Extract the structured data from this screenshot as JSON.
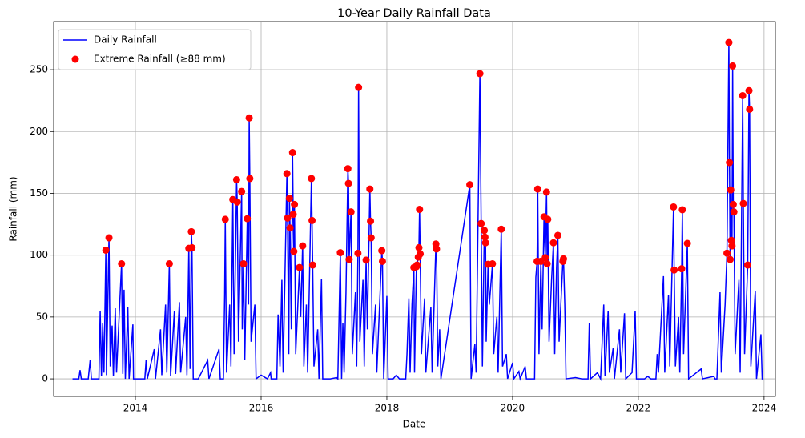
{
  "chart_data": {
    "type": "line",
    "title": "10-Year Daily Rainfall Data",
    "x_label": "Date",
    "y_label": "Rainfall (mm)",
    "xlim": [
      2012.7,
      2024.18
    ],
    "ylim": [
      -14.2,
      288.9
    ],
    "xticks": [
      2014,
      2016,
      2018,
      2020,
      2022,
      2024
    ],
    "yticks": [
      0,
      50,
      100,
      150,
      200,
      250
    ],
    "grid": true,
    "legend": "upper left",
    "series": [
      {
        "name": "Daily Rainfall",
        "type": "line",
        "color": "#0000ff",
        "x": [
          2013.0,
          2013.1,
          2013.12,
          2013.14,
          2013.25,
          2013.28,
          2013.3,
          2013.42,
          2013.44,
          2013.46,
          2013.48,
          2013.5,
          2013.53,
          2013.54,
          2013.58,
          2013.6,
          2013.63,
          2013.65,
          2013.68,
          2013.7,
          2013.78,
          2013.8,
          2013.82,
          2013.84,
          2013.88,
          2013.9,
          2013.96,
          2013.97,
          2014.15,
          2014.17,
          2014.19,
          2014.3,
          2014.32,
          2014.4,
          2014.42,
          2014.48,
          2014.5,
          2014.54,
          2014.56,
          2014.62,
          2014.64,
          2014.7,
          2014.72,
          2014.8,
          2014.82,
          2014.85,
          2014.87,
          2014.89,
          2014.9,
          2014.92,
          2015.0,
          2015.15,
          2015.17,
          2015.33,
          2015.35,
          2015.4,
          2015.42,
          2015.43,
          2015.45,
          2015.5,
          2015.52,
          2015.55,
          2015.57,
          2015.61,
          2015.62,
          2015.64,
          2015.69,
          2015.7,
          2015.72,
          2015.74,
          2015.78,
          2015.8,
          2015.81,
          2015.82,
          2015.84,
          2015.9,
          2015.92,
          2016.0,
          2016.1,
          2016.15,
          2016.16,
          2016.25,
          2016.27,
          2016.3,
          2016.33,
          2016.35,
          2016.41,
          2016.42,
          2016.44,
          2016.45,
          2016.46,
          2016.48,
          2016.5,
          2016.51,
          2016.52,
          2016.53,
          2016.55,
          2016.61,
          2016.63,
          2016.66,
          2016.68,
          2016.72,
          2016.74,
          2016.8,
          2016.81,
          2016.82,
          2016.84,
          2016.9,
          2016.92,
          2016.96,
          2016.98,
          2017.1,
          2017.2,
          2017.22,
          2017.26,
          2017.28,
          2017.3,
          2017.32,
          2017.35,
          2017.38,
          2017.39,
          2017.4,
          2017.43,
          2017.45,
          2017.5,
          2017.52,
          2017.54,
          2017.55,
          2017.57,
          2017.62,
          2017.64,
          2017.67,
          2017.69,
          2017.73,
          2017.74,
          2017.75,
          2017.77,
          2017.82,
          2017.84,
          2017.92,
          2017.93,
          2017.95,
          2018.0,
          2018.02,
          2018.1,
          2018.15,
          2018.2,
          2018.3,
          2018.32,
          2018.35,
          2018.37,
          2018.4,
          2018.43,
          2018.44,
          2018.47,
          2018.48,
          2018.5,
          2018.51,
          2018.52,
          2018.53,
          2018.55,
          2018.6,
          2018.62,
          2018.7,
          2018.72,
          2018.78,
          2018.79,
          2018.81,
          2018.84,
          2018.86,
          2019.32,
          2019.34,
          2019.4,
          2019.42,
          2019.48,
          2019.5,
          2019.52,
          2019.55,
          2019.56,
          2019.57,
          2019.58,
          2019.61,
          2019.63,
          2019.68,
          2019.7,
          2019.75,
          2019.77,
          2019.82,
          2019.84,
          2019.9,
          2019.92,
          2020.0,
          2020.02,
          2020.1,
          2020.12,
          2020.2,
          2020.22,
          2020.35,
          2020.37,
          2020.39,
          2020.4,
          2020.42,
          2020.45,
          2020.47,
          2020.5,
          2020.52,
          2020.54,
          2020.55,
          2020.56,
          2020.58,
          2020.62,
          2020.65,
          2020.67,
          2020.7,
          2020.72,
          2020.74,
          2020.8,
          2020.81,
          2020.83,
          2020.85,
          2021.0,
          2021.1,
          2021.2,
          2021.22,
          2021.24,
          2021.35,
          2021.4,
          2021.45,
          2021.47,
          2021.52,
          2021.54,
          2021.6,
          2021.62,
          2021.7,
          2021.72,
          2021.78,
          2021.8,
          2021.9,
          2021.95,
          2021.97,
          2022.1,
          2022.15,
          2022.2,
          2022.28,
          2022.3,
          2022.32,
          2022.4,
          2022.42,
          2022.48,
          2022.5,
          2022.56,
          2022.57,
          2022.59,
          2022.64,
          2022.66,
          2022.69,
          2022.7,
          2022.72,
          2022.78,
          2022.8,
          2023.0,
          2023.02,
          2023.2,
          2023.22,
          2023.25,
          2023.27,
          2023.3,
          2023.32,
          2023.38,
          2023.41,
          2023.44,
          2023.45,
          2023.46,
          2023.47,
          2023.48,
          2023.49,
          2023.5,
          2023.51,
          2023.52,
          2023.54,
          2023.6,
          2023.62,
          2023.66,
          2023.67,
          2023.69,
          2023.74,
          2023.76,
          2023.77,
          2023.79,
          2023.86,
          2023.88,
          2023.95,
          2023.97,
          2023.99
        ],
        "values": [
          0,
          0,
          7,
          0,
          0,
          15,
          0,
          0,
          55,
          2,
          45,
          5,
          104,
          3,
          114,
          10,
          43,
          2,
          57,
          5,
          93,
          4,
          72,
          0,
          58,
          0,
          44,
          0,
          0,
          15,
          0,
          24,
          0,
          40,
          3,
          60,
          5,
          93,
          2,
          55,
          4,
          62,
          5,
          50,
          3,
          105.5,
          8,
          119,
          106,
          0,
          0,
          15,
          0,
          24,
          0,
          0,
          68,
          129,
          5,
          60,
          10,
          145,
          20,
          161,
          143,
          30,
          151.5,
          40,
          93,
          15,
          129.5,
          60,
          211,
          162,
          30,
          60,
          0,
          3,
          0,
          5,
          0,
          0,
          52,
          10,
          80,
          5,
          166,
          130,
          20,
          146,
          122,
          40,
          183,
          133,
          103,
          141,
          20,
          90,
          50,
          107.5,
          10,
          60,
          5,
          162,
          128,
          92,
          10,
          40,
          0,
          81,
          0,
          0,
          1,
          0,
          102,
          0,
          45,
          5,
          70,
          170,
          158,
          96.5,
          135,
          20,
          70,
          10,
          101.5,
          235.7,
          30,
          80,
          10,
          96,
          40,
          153.5,
          127.5,
          114,
          20,
          60,
          5,
          103.6,
          95,
          0,
          67,
          0,
          0,
          3,
          0,
          0,
          20,
          65,
          5,
          60,
          90,
          5,
          90.7,
          92,
          98.4,
          106,
          137,
          101,
          20,
          65,
          5,
          58,
          5,
          109,
          105,
          10,
          40,
          0,
          157,
          0,
          28,
          5,
          246.8,
          125.6,
          10,
          120,
          114.6,
          110,
          30,
          92.6,
          60,
          93,
          20,
          50,
          5,
          121,
          10,
          20,
          0,
          13,
          0,
          6,
          0,
          10,
          0,
          0,
          82,
          95,
          153.5,
          20,
          95,
          40,
          131,
          98,
          151,
          93,
          129,
          30,
          80,
          110,
          20,
          90,
          116,
          30,
          95,
          97,
          60,
          0,
          1,
          0,
          0,
          45,
          0,
          5,
          0,
          60,
          2,
          55,
          5,
          25,
          0,
          40,
          5,
          53,
          0,
          5,
          55,
          0,
          0,
          2,
          0,
          0,
          20,
          5,
          83,
          5,
          68,
          10,
          139,
          88,
          10,
          50,
          5,
          89,
          136.7,
          20,
          109.5,
          0,
          8,
          0,
          2,
          0,
          0,
          28,
          70,
          5,
          60,
          101.6,
          272,
          174.9,
          96.5,
          152.8,
          112,
          107.5,
          253,
          141,
          135,
          20,
          80,
          5,
          229,
          141.8,
          20,
          92,
          233,
          218,
          10,
          71,
          0,
          36,
          0,
          0
        ]
      },
      {
        "name": "Extreme Rainfall (≥88 mm)",
        "type": "scatter",
        "color": "#ff0000",
        "x": [
          2013.53,
          2013.58,
          2013.78,
          2014.54,
          2014.85,
          2014.89,
          2014.9,
          2015.43,
          2015.55,
          2015.61,
          2015.62,
          2015.69,
          2015.72,
          2015.78,
          2015.81,
          2015.82,
          2016.41,
          2016.42,
          2016.45,
          2016.46,
          2016.5,
          2016.51,
          2016.52,
          2016.53,
          2016.61,
          2016.66,
          2016.8,
          2016.81,
          2016.82,
          2017.26,
          2017.38,
          2017.39,
          2017.4,
          2017.43,
          2017.54,
          2017.55,
          2017.67,
          2017.73,
          2017.74,
          2017.75,
          2017.92,
          2017.93,
          2018.43,
          2018.47,
          2018.48,
          2018.5,
          2018.51,
          2018.52,
          2018.53,
          2018.78,
          2018.79,
          2019.32,
          2019.48,
          2019.5,
          2019.55,
          2019.56,
          2019.57,
          2019.61,
          2019.68,
          2019.82,
          2020.39,
          2020.4,
          2020.45,
          2020.5,
          2020.52,
          2020.54,
          2020.55,
          2020.56,
          2020.65,
          2020.72,
          2020.8,
          2020.81,
          2022.56,
          2022.57,
          2022.69,
          2022.7,
          2022.78,
          2023.41,
          2023.44,
          2023.45,
          2023.46,
          2023.47,
          2023.48,
          2023.49,
          2023.5,
          2023.51,
          2023.52,
          2023.66,
          2023.67,
          2023.74,
          2023.76,
          2023.77
        ],
        "values": [
          104,
          114,
          93,
          93,
          105.5,
          119,
          106,
          129,
          145,
          161,
          143,
          151.5,
          93,
          129.5,
          211,
          162,
          166,
          130,
          146,
          122,
          183,
          133,
          103,
          141,
          90,
          107.5,
          162,
          128,
          92,
          102,
          170,
          158,
          96.5,
          135,
          101.5,
          235.7,
          96,
          153.5,
          127.5,
          114,
          103.6,
          95,
          90,
          90.7,
          92,
          98.4,
          106,
          137,
          101,
          109,
          105,
          157,
          246.8,
          125.6,
          120,
          114.6,
          110,
          92.6,
          93,
          121,
          95,
          153.5,
          95,
          131,
          98,
          151,
          93,
          129,
          110,
          116,
          95,
          97,
          139,
          88,
          89,
          136.7,
          109.5,
          101.6,
          272,
          174.9,
          96.5,
          152.8,
          112,
          107.5,
          253,
          141,
          135,
          229,
          141.8,
          92,
          233,
          218
        ]
      }
    ]
  }
}
